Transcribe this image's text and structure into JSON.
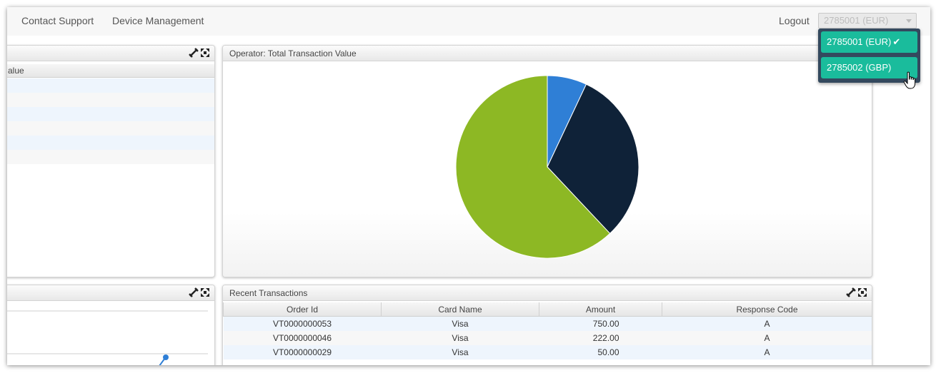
{
  "nav": {
    "contact_support": "Contact Support",
    "device_management": "Device Management",
    "logout": "Logout"
  },
  "account_select": {
    "selected": "2785001 (EUR)",
    "options": [
      "2785001 (EUR)",
      "2785002 (GBP)"
    ],
    "selected_mark_icon": "check-icon"
  },
  "left_top_panel": {
    "column_header": "alue"
  },
  "pie_panel": {
    "title": "Operator: Total Transaction Value"
  },
  "recent_panel": {
    "title": "Recent Transactions",
    "columns": [
      "Order Id",
      "Card Name",
      "Amount",
      "Response Code"
    ],
    "rows": [
      [
        "VT0000000053",
        "Visa",
        "750.00",
        "A"
      ],
      [
        "VT0000000046",
        "Visa",
        "222.00",
        "A"
      ],
      [
        "VT0000000029",
        "Visa",
        "50.00",
        "A"
      ]
    ]
  },
  "colors": {
    "pie_blue": "#2f7fd6",
    "pie_navy": "#0f2238",
    "pie_green": "#8db824",
    "dropdown_bg": "#34495e",
    "dropdown_item": "#1abc9c"
  },
  "chart_data": {
    "type": "pie",
    "series": [
      {
        "values": [
          7,
          31,
          62
        ],
        "colors": [
          "#2f7fd6",
          "#0f2238",
          "#8db824"
        ]
      }
    ]
  }
}
